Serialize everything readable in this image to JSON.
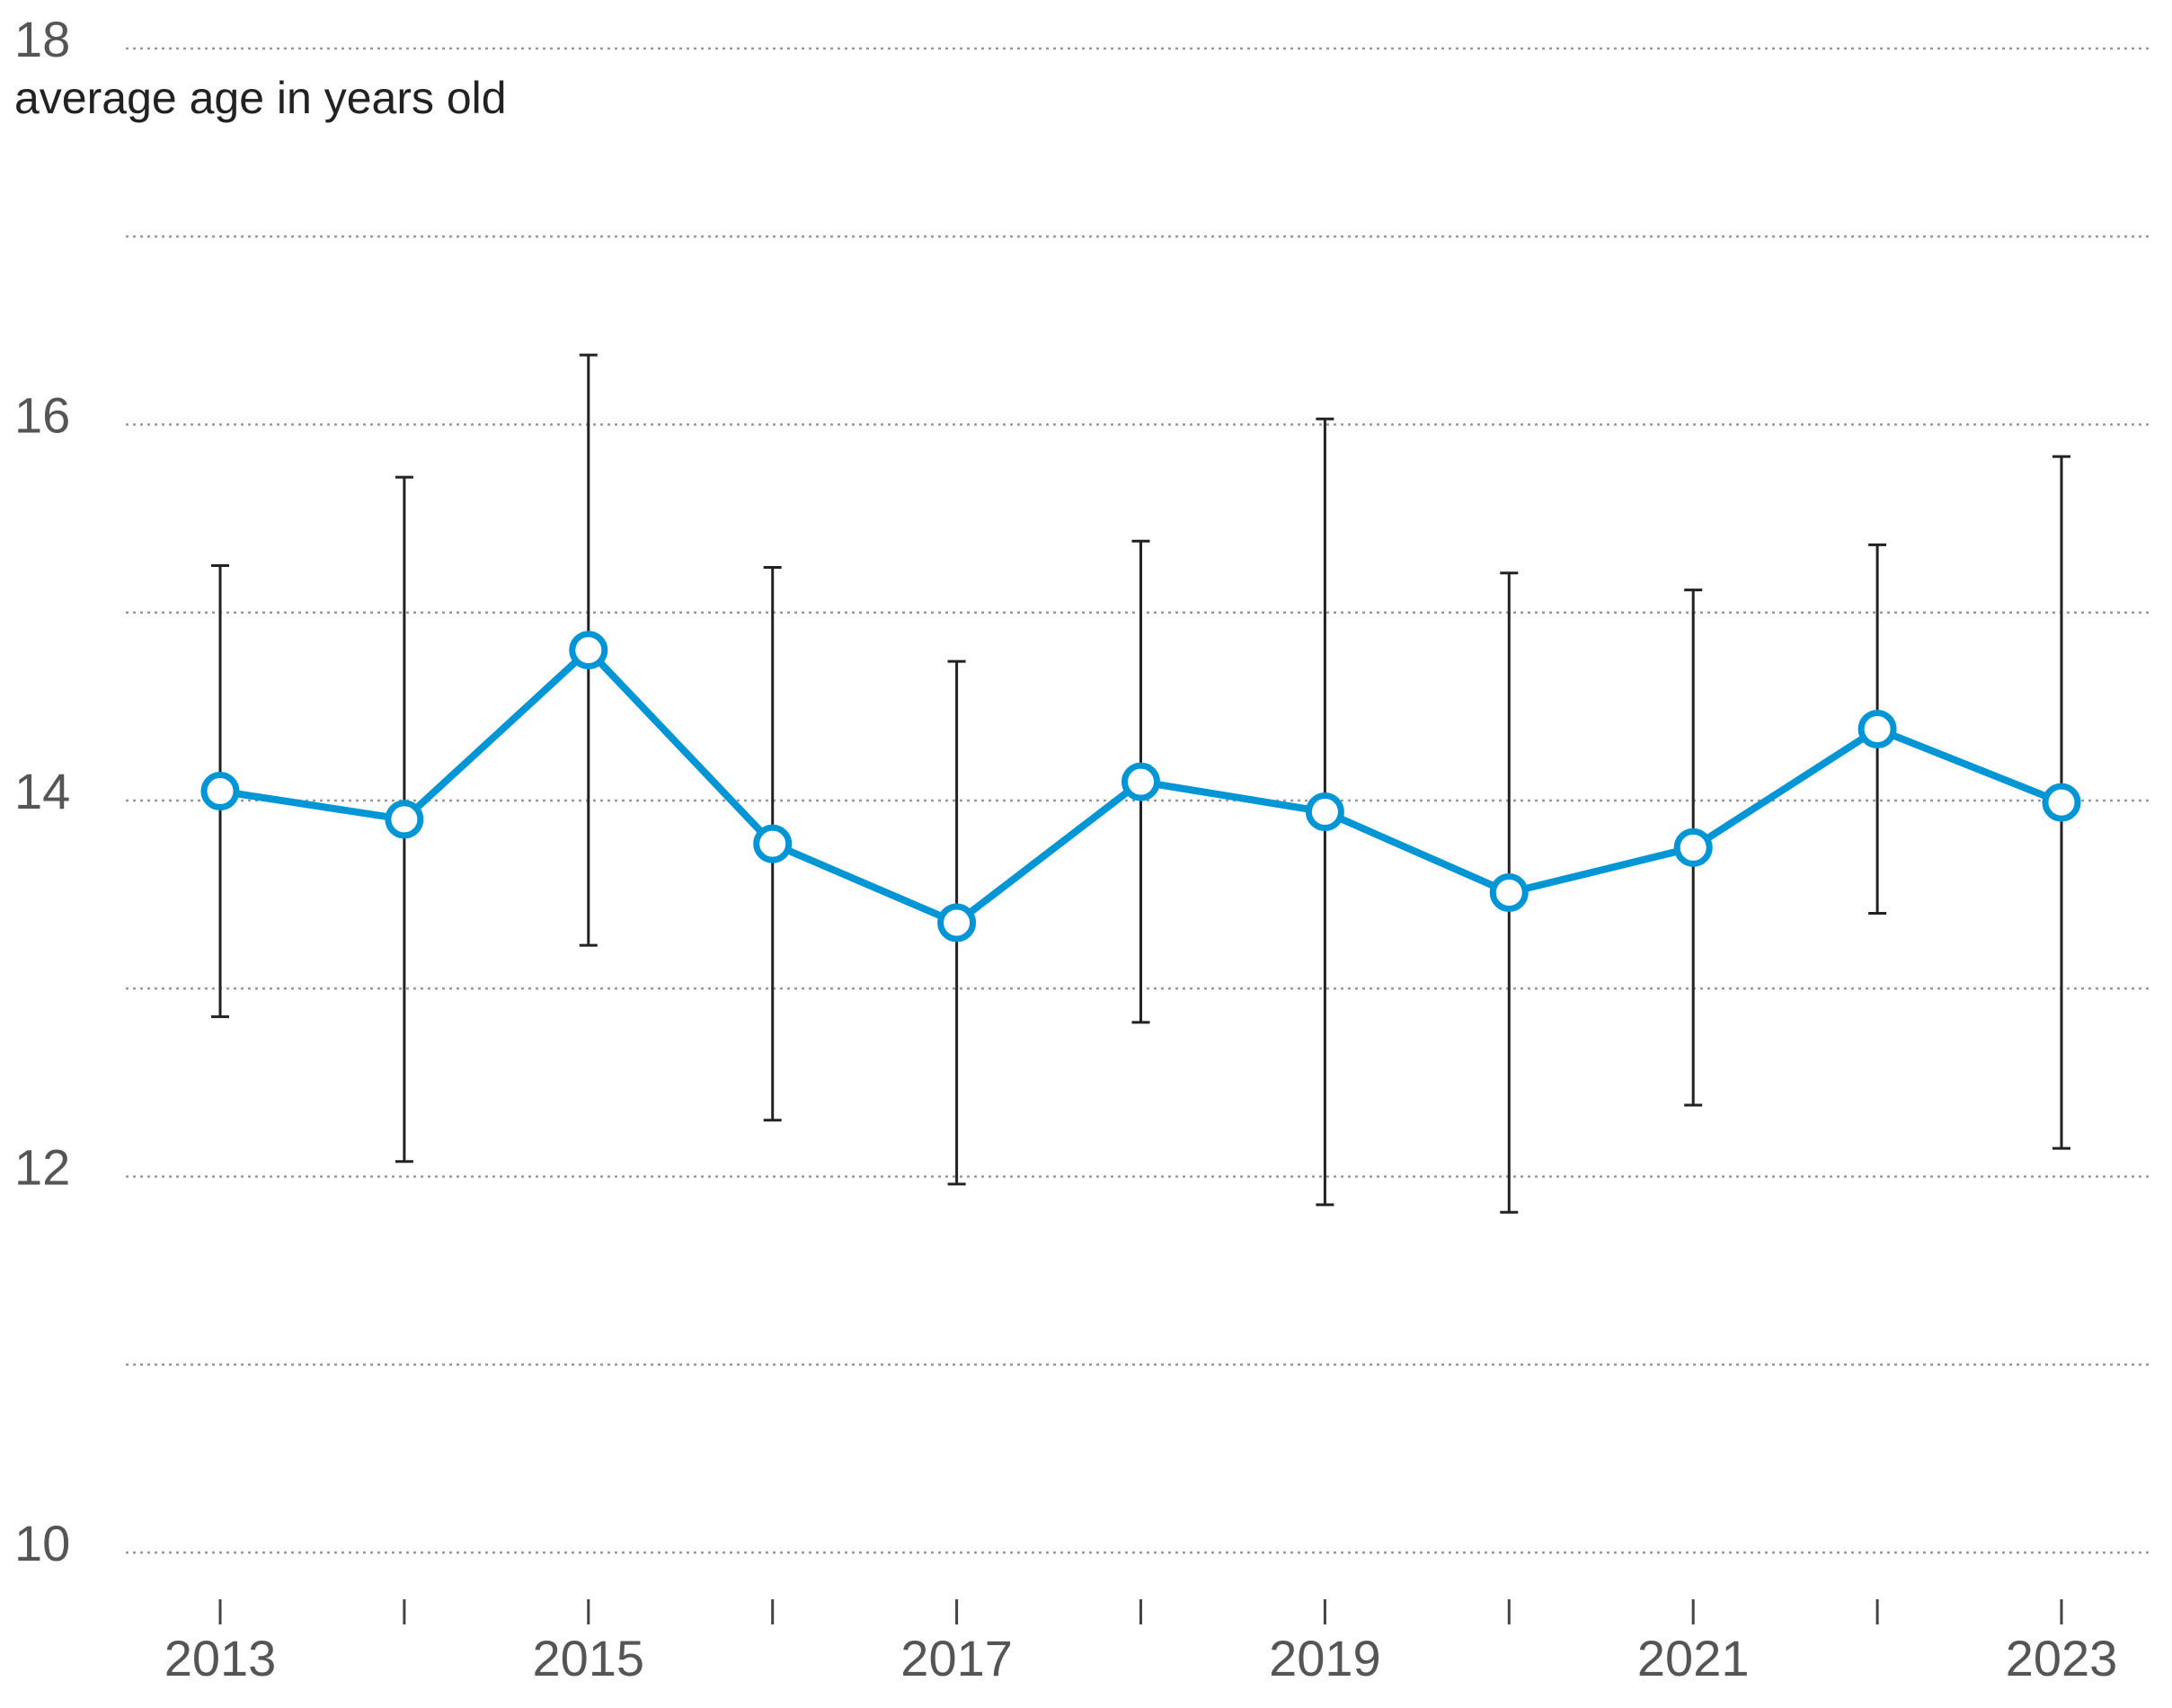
{
  "chart_data": {
    "type": "line",
    "y_label": "average age in years old",
    "x": [
      2013,
      2014,
      2015,
      2016,
      2017,
      2018,
      2019,
      2020,
      2021,
      2022,
      2023
    ],
    "series": [
      {
        "color": "#0096d6",
        "values": [
          14.05,
          13.9,
          14.8,
          13.77,
          13.35,
          14.1,
          13.94,
          13.51,
          13.75,
          14.38,
          13.99
        ],
        "errors": [
          1.2,
          1.82,
          1.57,
          1.47,
          1.39,
          1.28,
          2.09,
          1.7,
          1.37,
          0.98,
          1.84
        ]
      }
    ],
    "error_color": "#222222",
    "xlim": [
      2012.5,
      2023.5
    ],
    "xticks": [
      2013,
      2015,
      2017,
      2019,
      2021,
      2023
    ],
    "ylim": [
      10,
      18
    ],
    "yticks": [
      10,
      12,
      14,
      16,
      18
    ],
    "grid_lines": [
      10,
      11,
      12,
      13,
      14,
      15,
      16,
      17,
      18
    ],
    "grid": true
  }
}
